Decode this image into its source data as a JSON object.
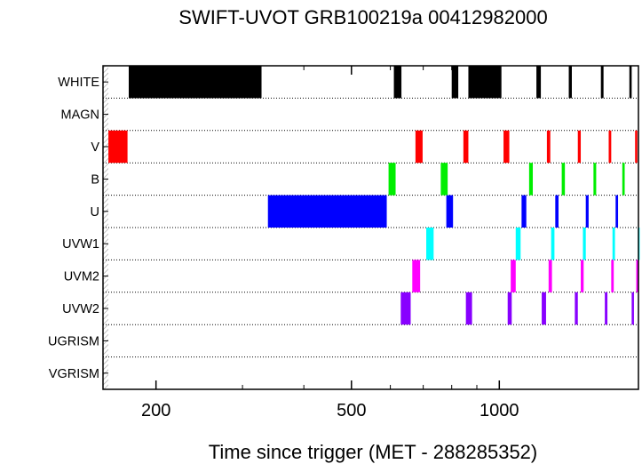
{
  "chart_data": {
    "type": "bar",
    "title": "SWIFT-UVOT GRB100219a 00412982000",
    "xlabel": "Time since trigger (MET - 288285352)",
    "ylabel": "",
    "x_scale": "log",
    "xlim": [
      156,
      1920
    ],
    "x_ticks": [
      200,
      500,
      1000
    ],
    "x_tick_labels": [
      "200",
      "500",
      "1000"
    ],
    "grid": "dotted horizontal row separators",
    "rows": [
      {
        "label": "WHITE",
        "color": "#000000",
        "intervals": [
          [
            176,
            328
          ],
          [
            610,
            632
          ],
          [
            800,
            825
          ],
          [
            865,
            1010
          ],
          [
            1190,
            1215
          ],
          [
            1385,
            1405
          ],
          [
            1610,
            1630
          ],
          [
            1840,
            1860
          ]
        ]
      },
      {
        "label": "MAGN",
        "color": "#000000",
        "intervals": []
      },
      {
        "label": "V",
        "color": "#ff0000",
        "intervals": [
          [
            160,
            175
          ],
          [
            675,
            698
          ],
          [
            845,
            865
          ],
          [
            1020,
            1048
          ],
          [
            1250,
            1270
          ],
          [
            1445,
            1465
          ],
          [
            1670,
            1690
          ],
          [
            1890,
            1910
          ]
        ]
      },
      {
        "label": "B",
        "color": "#00ee00",
        "intervals": [
          [
            595,
            615
          ],
          [
            760,
            785
          ],
          [
            1150,
            1170
          ],
          [
            1340,
            1360
          ],
          [
            1555,
            1575
          ],
          [
            1780,
            1800
          ]
        ]
      },
      {
        "label": "U",
        "color": "#0000ff",
        "intervals": [
          [
            338,
            590
          ],
          [
            780,
            805
          ],
          [
            1110,
            1135
          ],
          [
            1300,
            1320
          ],
          [
            1500,
            1520
          ],
          [
            1725,
            1745
          ]
        ]
      },
      {
        "label": "UVW1",
        "color": "#00ffff",
        "intervals": [
          [
            710,
            735
          ],
          [
            1080,
            1105
          ],
          [
            1275,
            1295
          ],
          [
            1480,
            1500
          ],
          [
            1700,
            1720
          ],
          [
            1915,
            1935
          ]
        ]
      },
      {
        "label": "UVM2",
        "color": "#ff00ff",
        "intervals": [
          [
            665,
            690
          ],
          [
            1055,
            1080
          ],
          [
            1260,
            1280
          ],
          [
            1465,
            1485
          ],
          [
            1690,
            1710
          ],
          [
            1900,
            1920
          ]
        ]
      },
      {
        "label": "UVW2",
        "color": "#8800ff",
        "intervals": [
          [
            630,
            660
          ],
          [
            855,
            880
          ],
          [
            1040,
            1060
          ],
          [
            1220,
            1245
          ],
          [
            1425,
            1445
          ],
          [
            1640,
            1660
          ],
          [
            1860,
            1880
          ]
        ]
      },
      {
        "label": "UGRISM",
        "color": "#000000",
        "intervals": []
      },
      {
        "label": "VGRISM",
        "color": "#000000",
        "intervals": []
      }
    ]
  }
}
